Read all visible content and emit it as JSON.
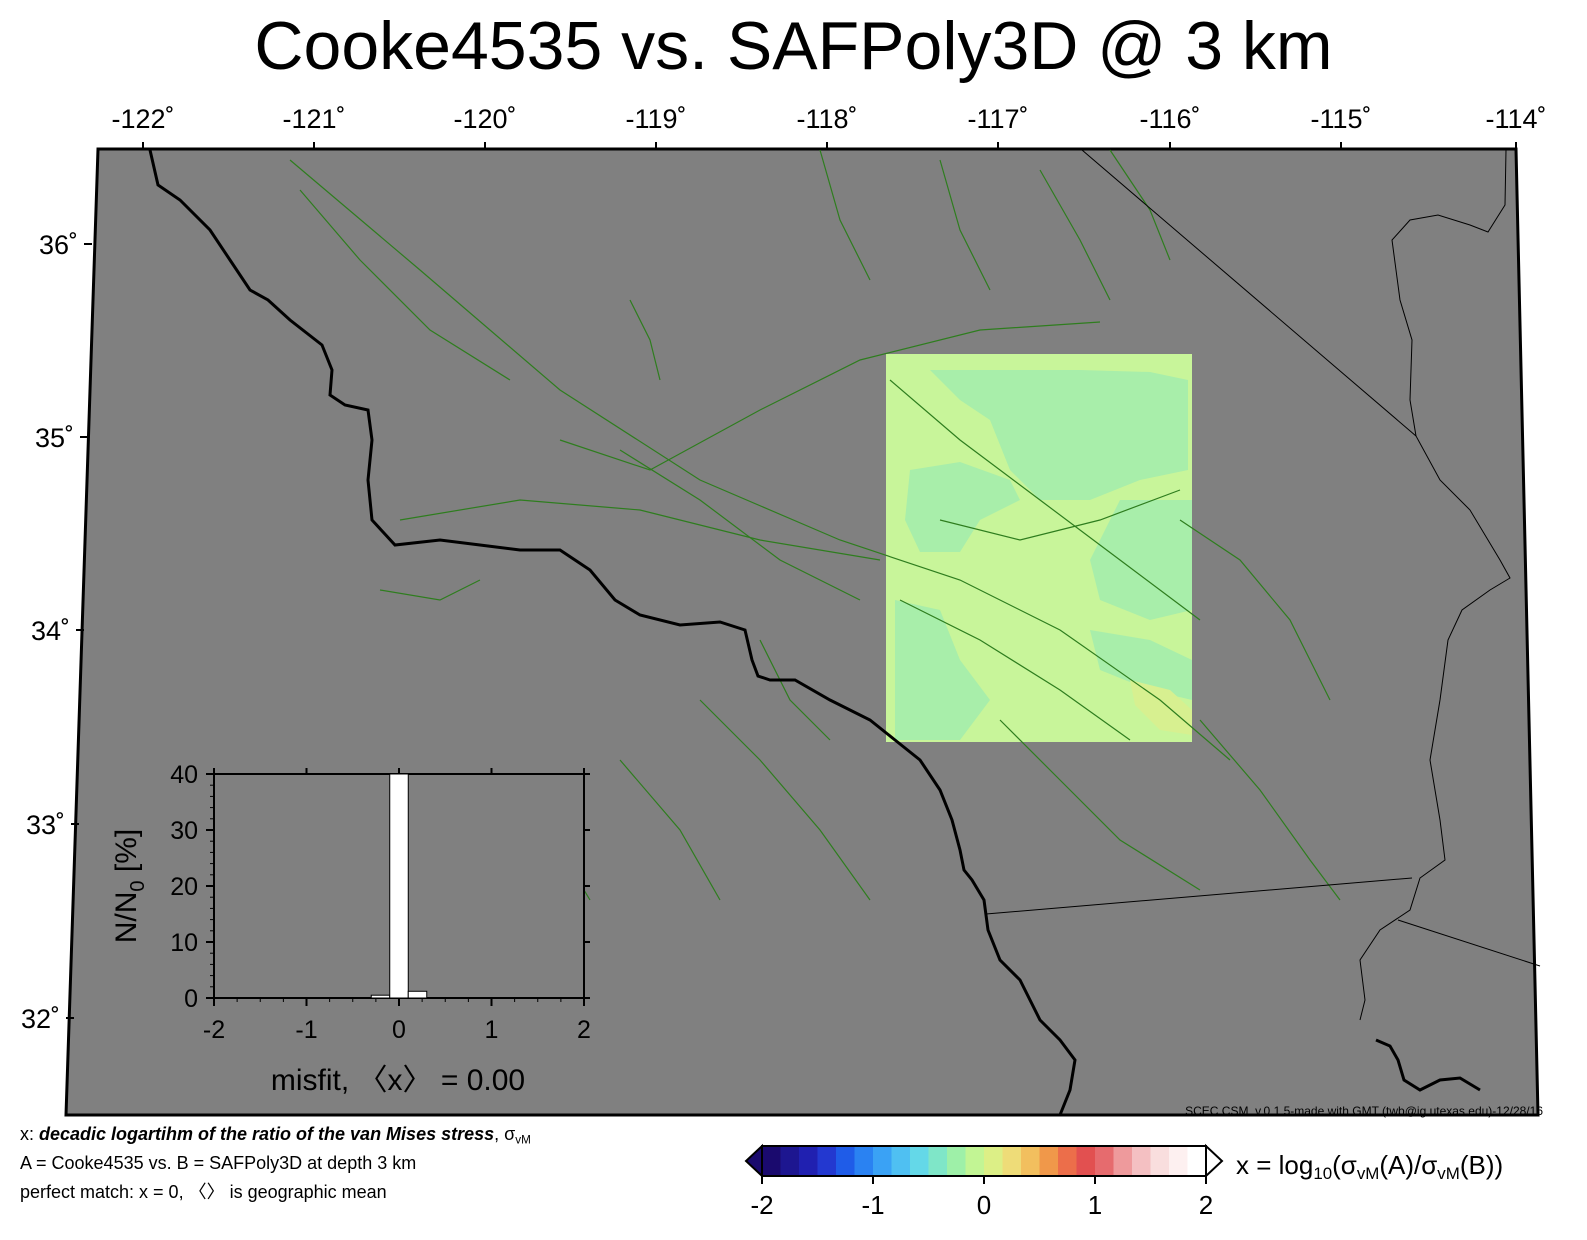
{
  "title": "Cooke4535 vs. SAFPoly3D @ 3 km",
  "map": {
    "lon_ticks": [
      "-122˚",
      "-121˚",
      "-120˚",
      "-119˚",
      "-118˚",
      "-117˚",
      "-116˚",
      "-115˚",
      "-114˚"
    ],
    "lat_ticks": [
      "36˚",
      "35˚",
      "34˚",
      "33˚",
      "32˚"
    ],
    "lon_range": [
      -122,
      -114
    ],
    "lat_range": [
      31.5,
      36.5
    ],
    "background_color": "#808080",
    "fault_color": "#2e7d1e",
    "coastline_color": "#000000",
    "misfit_patch_colors": [
      "#c8f59a",
      "#a8eeaa",
      "#d7f090"
    ],
    "credit": "SCEC CSM, v.0.1.5-made with GMT (twb@ig.utexas.edu)-12/28/16"
  },
  "inset": {
    "ylabel": "N/N",
    "ylabel_sub": "0",
    "ylabel_suffix": " [%]",
    "xlabel": "misfit, 〈x〉 = 0.00",
    "y_ticks": [
      "40",
      "30",
      "20",
      "10",
      "0"
    ],
    "x_ticks": [
      "-2",
      "-1",
      "0",
      "1",
      "2"
    ]
  },
  "chart_data": {
    "type": "bar",
    "title": "",
    "xlabel": "misfit, 〈x〉 = 0.00",
    "ylabel": "N/N0 [%]",
    "xlim": [
      -2,
      2
    ],
    "ylim": [
      0,
      40
    ],
    "bins": [
      {
        "x0": -0.3,
        "x1": -0.1,
        "value": 0.5
      },
      {
        "x0": -0.1,
        "x1": 0.1,
        "value": 40
      },
      {
        "x0": 0.1,
        "x1": 0.3,
        "value": 1.2
      }
    ]
  },
  "colorbar": {
    "ticks": [
      "-2",
      "-1",
      "0",
      "1",
      "2"
    ],
    "range": [
      -2,
      2
    ],
    "colors": [
      "#1a0a6e",
      "#1d1690",
      "#2020b0",
      "#2338d0",
      "#1f5ce8",
      "#2a82f2",
      "#3aa2f5",
      "#4fc0f2",
      "#64d8e8",
      "#7fe6c8",
      "#9ef0a8",
      "#c2f594",
      "#dcef86",
      "#eedc78",
      "#f2bf5e",
      "#f0984a",
      "#ec6e4a",
      "#e25050",
      "#e66b6e",
      "#ee9a9c",
      "#f4c0c2",
      "#f9dede",
      "#fdf0f0",
      "#ffffff"
    ],
    "formula_prefix": "x = log",
    "formula_sub": "10",
    "formula_mid": "(σ",
    "formula_sub2": "vM",
    "formula_mid2": "(A)/σ",
    "formula_sub3": "vM",
    "formula_end": "(B))"
  },
  "footer": {
    "line1_prefix": "x: ",
    "line1_bold": "decadic logartihm of the ratio of the van Mises stress",
    "line1_suffix": ", σ",
    "line1_sub": "vM",
    "line2": "A = Cooke4535 vs.  B = SAFPoly3D at depth 3 km",
    "line3": "perfect match: x = 0, 〈〉 is geographic mean"
  }
}
